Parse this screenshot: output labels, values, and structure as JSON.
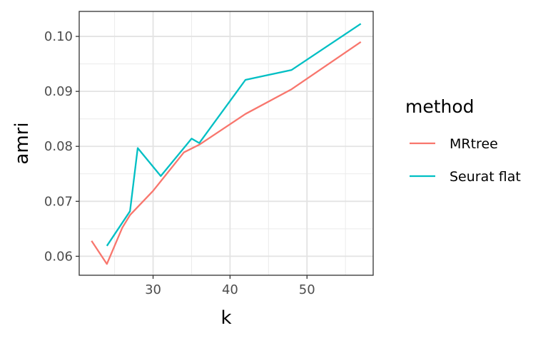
{
  "chart_data": {
    "type": "line",
    "xlabel": "k",
    "ylabel": "amri",
    "xlim": [
      20.4,
      58.6
    ],
    "ylim": [
      0.05655,
      0.10455
    ],
    "x_ticks": [
      30,
      40,
      50
    ],
    "x_tick_labels": [
      "30",
      "40",
      "50"
    ],
    "x_minor": [
      25,
      35,
      45,
      55
    ],
    "y_ticks": [
      0.06,
      0.07,
      0.08,
      0.09,
      0.1
    ],
    "y_tick_labels": [
      "0.06",
      "0.07",
      "0.08",
      "0.09",
      "0.10"
    ],
    "y_minor": [
      0.065,
      0.075,
      0.085,
      0.095
    ],
    "grid": true,
    "legend": {
      "title": "method",
      "position": "right"
    },
    "series": [
      {
        "name": "MRtree",
        "color": "#F8766D",
        "points": [
          [
            22,
            0.0628
          ],
          [
            24,
            0.0586
          ],
          [
            26,
            0.0652
          ],
          [
            27,
            0.0675
          ],
          [
            30,
            0.0719
          ],
          [
            34,
            0.0789
          ],
          [
            36,
            0.0803
          ],
          [
            42,
            0.0859
          ],
          [
            48,
            0.0904
          ],
          [
            57,
            0.099
          ]
        ]
      },
      {
        "name": "Seurat flat",
        "color": "#00BFC4",
        "points": [
          [
            24,
            0.0619
          ],
          [
            27,
            0.0682
          ],
          [
            28,
            0.0797
          ],
          [
            31,
            0.0746
          ],
          [
            35,
            0.0814
          ],
          [
            36,
            0.0806
          ],
          [
            42,
            0.0921
          ],
          [
            48,
            0.0939
          ],
          [
            57,
            0.1023
          ]
        ]
      }
    ]
  }
}
